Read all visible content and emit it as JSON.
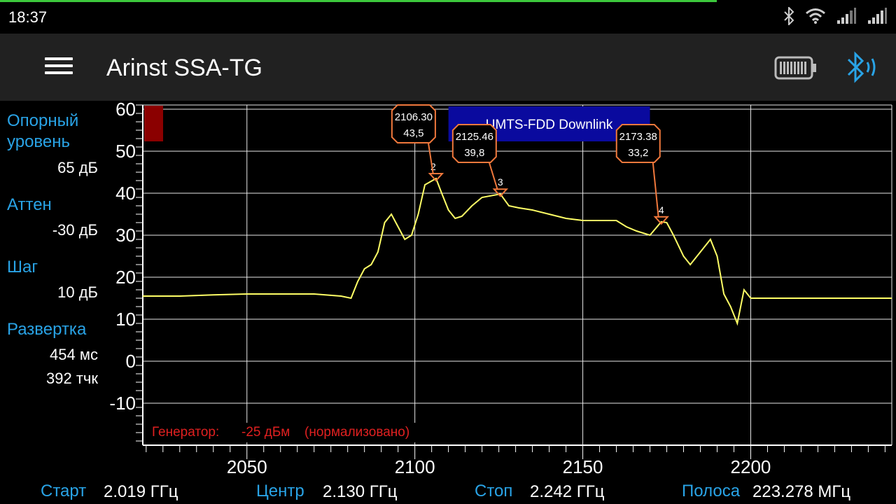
{
  "status_bar": {
    "time": "18:37",
    "progress_fraction": 0.8,
    "icons": [
      "bluetooth-icon",
      "wifi-icon",
      "signal-icon",
      "signal-icon"
    ]
  },
  "app_bar": {
    "title": "Arinst SSA-TG",
    "menu_icon": "hamburger-menu-icon",
    "battery_icon": "battery-icon",
    "bluetooth_icon": "bluetooth-connected-icon"
  },
  "sidebar": {
    "ref_level_label": "Опорный уровень",
    "ref_level_label_line1": "Опорный",
    "ref_level_label_line2": "уровень",
    "ref_level_value": "65  дБ",
    "atten_label": "Аттен",
    "atten_value": "-30 дБ",
    "step_label": "Шаг",
    "step_value": "10  дБ",
    "sweep_label": "Развертка",
    "sweep_time": "454 мс",
    "sweep_points": "392 тчк"
  },
  "footer": {
    "start_label": "Старт",
    "start_value": "2.019 ГГц",
    "center_label": "Центр",
    "center_value": "2.130 ГГц",
    "stop_label": "Стоп",
    "stop_value": "2.242 ГГц",
    "span_label": "Полоса",
    "span_value": "223.278 МГц"
  },
  "colors": {
    "accent": "#29a3e6",
    "trace": "#ffff66",
    "marker": "#f0783c",
    "band": "#0a0a9e",
    "generator_text": "#e02020",
    "ref_box": "#8b0000"
  },
  "chart_data": {
    "type": "line",
    "xlim": [
      2019,
      2242
    ],
    "ylim": [
      -20,
      61
    ],
    "xticks": [
      2050,
      2100,
      2150,
      2200
    ],
    "xtick_labels": [
      "2050",
      "2100",
      "2150",
      "2200"
    ],
    "yticks": [
      60,
      50,
      40,
      30,
      20,
      10,
      0,
      -10
    ],
    "ytick_labels": [
      "60",
      "50",
      "40",
      "30",
      "20",
      "10",
      "0",
      "-10"
    ],
    "grid": true,
    "band": {
      "label": "UMTS-FDD Downlink",
      "x_start": 2110,
      "x_end": 2170
    },
    "generator_note": {
      "label": "Генератор:",
      "level": "-25 дБм",
      "mode": "(нормализовано)"
    },
    "trace": {
      "x": [
        2019,
        2030,
        2040,
        2050,
        2060,
        2070,
        2078,
        2081,
        2083,
        2085,
        2087,
        2089,
        2091,
        2093,
        2095,
        2097,
        2099,
        2101,
        2103,
        2106.3,
        2108,
        2110,
        2112,
        2114,
        2117,
        2120,
        2125.46,
        2128,
        2131,
        2135,
        2140,
        2145,
        2150,
        2155,
        2160,
        2163,
        2166,
        2170,
        2173.38,
        2175,
        2177,
        2180,
        2182,
        2185,
        2188,
        2190,
        2192,
        2194,
        2196,
        2198,
        2200,
        2210,
        2220,
        2230,
        2242
      ],
      "y": [
        15.5,
        15.5,
        15.8,
        16,
        16,
        16,
        15.5,
        15,
        19,
        22,
        23,
        26,
        33,
        35,
        32,
        29,
        30,
        35,
        42,
        43.5,
        40,
        36,
        34,
        34.5,
        37,
        39,
        39.8,
        37,
        36.5,
        36,
        35,
        34,
        33.5,
        33.5,
        33.5,
        32,
        31,
        30,
        33.2,
        33,
        30,
        25,
        23,
        26,
        29,
        25,
        16,
        13,
        9,
        17,
        15,
        15,
        15,
        15,
        15
      ]
    },
    "markers": [
      {
        "id": "2",
        "freq": "2106.30",
        "level": "43,5",
        "x": 2106.3,
        "y": 43.5
      },
      {
        "id": "3",
        "freq": "2125.46",
        "level": "39,8",
        "x": 2125.46,
        "y": 39.8
      },
      {
        "id": "4",
        "freq": "2173.38",
        "level": "33,2",
        "x": 2173.38,
        "y": 33.2
      }
    ]
  }
}
